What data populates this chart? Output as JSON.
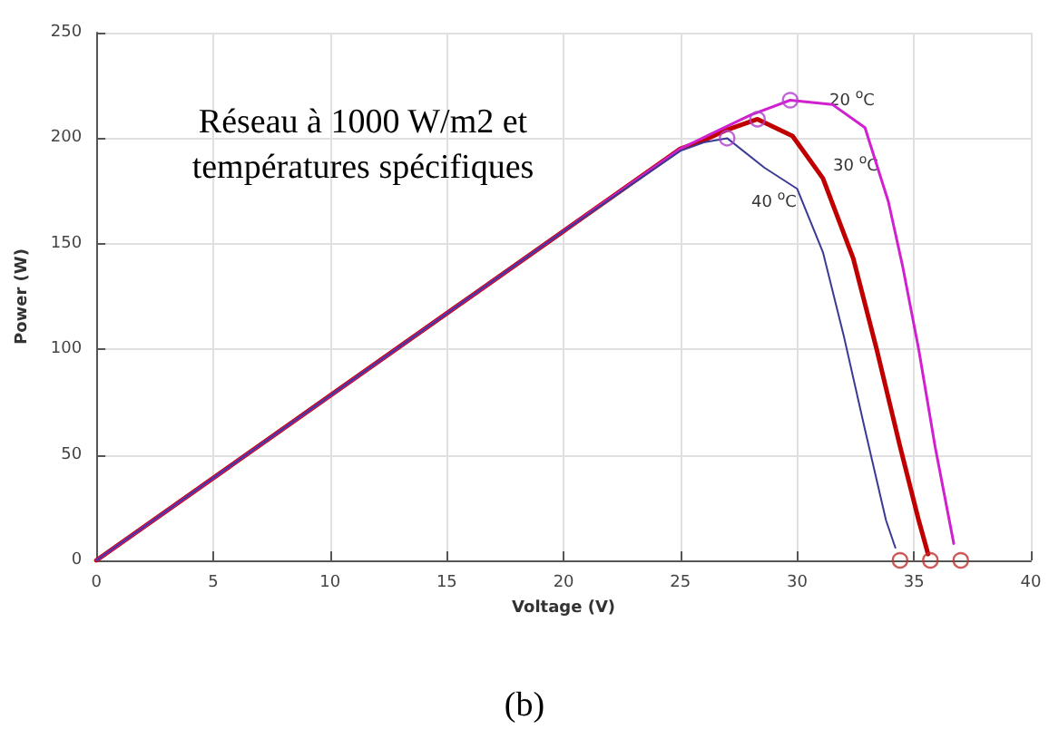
{
  "chart_data": {
    "type": "line",
    "xlabel": "Voltage (V)",
    "ylabel": "Power (W)",
    "xlim": [
      0,
      40
    ],
    "xticks": [
      0,
      5,
      10,
      15,
      20,
      25,
      30,
      35,
      40
    ],
    "ylim": [
      0,
      250
    ],
    "yticks": [
      0,
      50,
      100,
      150,
      200,
      250
    ],
    "grid": true,
    "line_style": "solid",
    "marker": "none",
    "series": [
      {
        "color": "#3a3a96",
        "x": [
          0,
          10,
          20,
          25,
          26,
          27,
          28.6,
          30,
          31.1,
          32,
          32.9,
          33.8,
          34.2
        ],
        "values": [
          0,
          78,
          156,
          194,
          198,
          200,
          186,
          176,
          146,
          106,
          62,
          19,
          6
        ]
      },
      {
        "color": "#c00000",
        "x": [
          0,
          10,
          20,
          25,
          26,
          27,
          28.3,
          29.8,
          31.1,
          32.4,
          33.4,
          34.4,
          35.2,
          35.6
        ],
        "values": [
          0,
          78,
          156,
          195,
          199,
          204,
          209,
          201,
          181,
          143,
          100,
          54,
          19,
          3
        ]
      },
      {
        "color": "#d020d0",
        "x": [
          0,
          10,
          20,
          25,
          26.5,
          28,
          29.7,
          31.5,
          32.9,
          33.9,
          34.5,
          35.2,
          35.9,
          36.7
        ],
        "values": [
          0,
          78,
          156,
          195,
          203,
          211,
          218,
          216,
          205,
          170,
          140,
          100,
          54,
          8
        ]
      },
      {
        "type": "scatter",
        "marker": "circle",
        "color": "#b040d0",
        "x": [
          27,
          28.3,
          29.7
        ],
        "values": [
          200,
          209,
          218
        ]
      },
      {
        "type": "scatter",
        "marker": "circle",
        "color": "#c03030",
        "x": [
          34.4,
          35.7,
          37
        ],
        "values": [
          0,
          0,
          0
        ]
      }
    ],
    "annotations": [
      "20 $^{o}$C",
      "30 $^{o}$C",
      "40 $^{o}$C",
      "Réseau à 1000 W/m2 et\ntempératures spécifiques",
      "(b)"
    ]
  }
}
